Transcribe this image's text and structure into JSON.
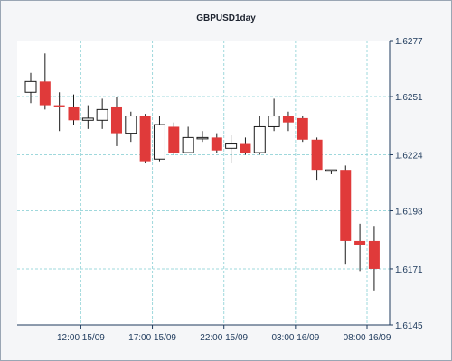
{
  "chart_data": {
    "type": "candlestick",
    "title": "GBPUSD1day",
    "xlabel": "",
    "ylabel": "",
    "ylim": [
      1.6145,
      1.6277
    ],
    "y_ticks": [
      "1.6277",
      "1.6251",
      "1.6224",
      "1.6198",
      "1.6171",
      "1.6145"
    ],
    "x_ticks": [
      {
        "index": 3.5,
        "label": "12:00 15/09"
      },
      {
        "index": 8.5,
        "label": "17:00 15/09"
      },
      {
        "index": 13.5,
        "label": "22:00 15/09"
      },
      {
        "index": 18.5,
        "label": "03:00 16/09"
      },
      {
        "index": 23.5,
        "label": "08:00 16/09"
      }
    ],
    "grid": true,
    "colors": {
      "up": "#ffffff",
      "down": "#e03a3a",
      "wick": "#1a1a1a",
      "grid": "#9fd8dc",
      "axis": "#1e3a5c"
    },
    "candles": [
      {
        "open": 1.6253,
        "high": 1.6262,
        "low": 1.6248,
        "close": 1.6258
      },
      {
        "open": 1.6258,
        "high": 1.6271,
        "low": 1.6245,
        "close": 1.6247
      },
      {
        "open": 1.6247,
        "high": 1.6253,
        "low": 1.6235,
        "close": 1.6246
      },
      {
        "open": 1.6246,
        "high": 1.6252,
        "low": 1.6238,
        "close": 1.624
      },
      {
        "open": 1.624,
        "high": 1.6247,
        "low": 1.6236,
        "close": 1.6241
      },
      {
        "open": 1.624,
        "high": 1.625,
        "low": 1.6236,
        "close": 1.6245
      },
      {
        "open": 1.6246,
        "high": 1.6251,
        "low": 1.6228,
        "close": 1.6234
      },
      {
        "open": 1.6234,
        "high": 1.6244,
        "low": 1.623,
        "close": 1.6242
      },
      {
        "open": 1.6242,
        "high": 1.6243,
        "low": 1.622,
        "close": 1.6221
      },
      {
        "open": 1.6222,
        "high": 1.6242,
        "low": 1.6221,
        "close": 1.6238
      },
      {
        "open": 1.6237,
        "high": 1.6239,
        "low": 1.6224,
        "close": 1.6225
      },
      {
        "open": 1.6225,
        "high": 1.6237,
        "low": 1.6225,
        "close": 1.6232
      },
      {
        "open": 1.6232,
        "high": 1.6235,
        "low": 1.623,
        "close": 1.6232
      },
      {
        "open": 1.6232,
        "high": 1.6234,
        "low": 1.6225,
        "close": 1.6226
      },
      {
        "open": 1.6227,
        "high": 1.6233,
        "low": 1.622,
        "close": 1.6229
      },
      {
        "open": 1.6229,
        "high": 1.6232,
        "low": 1.6224,
        "close": 1.6225
      },
      {
        "open": 1.6225,
        "high": 1.6242,
        "low": 1.6224,
        "close": 1.6237
      },
      {
        "open": 1.6237,
        "high": 1.625,
        "low": 1.6235,
        "close": 1.6242
      },
      {
        "open": 1.6242,
        "high": 1.6244,
        "low": 1.6235,
        "close": 1.6239
      },
      {
        "open": 1.6241,
        "high": 1.6242,
        "low": 1.623,
        "close": 1.6231
      },
      {
        "open": 1.6231,
        "high": 1.6232,
        "low": 1.6212,
        "close": 1.6217
      },
      {
        "open": 1.6217,
        "high": 1.6217,
        "low": 1.6215,
        "close": 1.6217
      },
      {
        "open": 1.6217,
        "high": 1.6219,
        "low": 1.6173,
        "close": 1.6184
      },
      {
        "open": 1.6184,
        "high": 1.6192,
        "low": 1.617,
        "close": 1.6182
      },
      {
        "open": 1.6184,
        "high": 1.6191,
        "low": 1.6161,
        "close": 1.6171
      }
    ]
  }
}
